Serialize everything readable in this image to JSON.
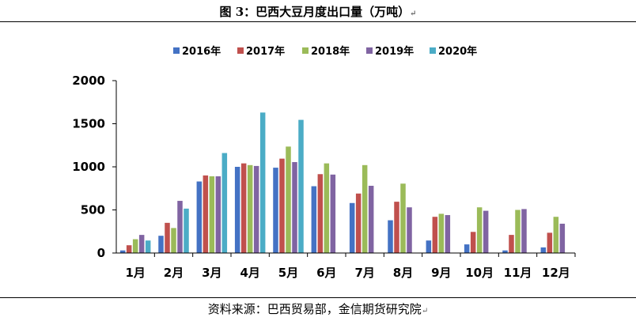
{
  "title": "图 3：巴西大豆月度出口量（万吨）",
  "title_mark": "↵",
  "source": "资料来源：巴西贸易部，金信期货研究院",
  "source_mark": "↵",
  "chart_data": {
    "type": "bar",
    "title": "",
    "xlabel": "",
    "ylabel": "",
    "ylim": [
      0,
      2000
    ],
    "yticks": [
      "0",
      "500",
      "1000",
      "1500",
      "2000"
    ],
    "grid": false,
    "legend_position": "top",
    "categories": [
      "1月",
      "2月",
      "3月",
      "4月",
      "5月",
      "6月",
      "7月",
      "8月",
      "9月",
      "10月",
      "11月",
      "12月"
    ],
    "series": [
      {
        "name": "2016年",
        "color": "#4472C4",
        "values": [
          30,
          200,
          830,
          1000,
          990,
          775,
          580,
          380,
          145,
          100,
          30,
          65
        ]
      },
      {
        "name": "2017年",
        "color": "#C0504D",
        "values": [
          90,
          350,
          900,
          1040,
          1095,
          915,
          690,
          595,
          420,
          245,
          210,
          235
        ]
      },
      {
        "name": "2018年",
        "color": "#9BBB59",
        "values": [
          160,
          290,
          890,
          1020,
          1235,
          1040,
          1020,
          805,
          455,
          530,
          500,
          420
        ]
      },
      {
        "name": "2019年",
        "color": "#8064A2",
        "values": [
          210,
          605,
          890,
          1010,
          1055,
          910,
          780,
          530,
          440,
          490,
          510,
          340
        ]
      },
      {
        "name": "2020年",
        "color": "#4BACC6",
        "values": [
          145,
          515,
          1160,
          1630,
          1545,
          null,
          null,
          null,
          null,
          null,
          null,
          null
        ]
      }
    ]
  }
}
